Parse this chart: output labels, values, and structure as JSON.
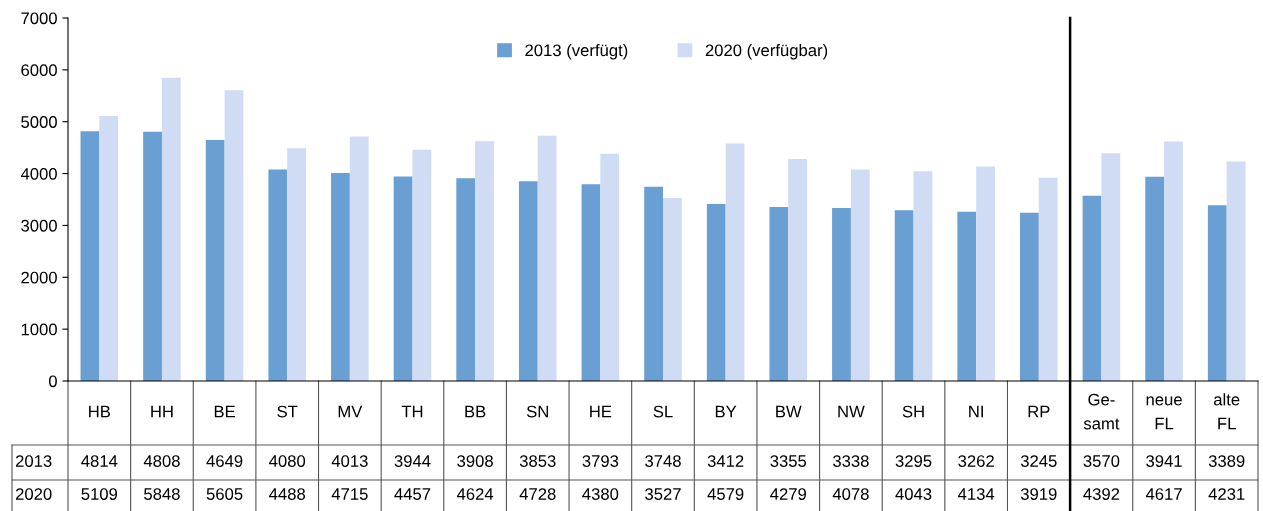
{
  "chart_data": {
    "type": "bar",
    "categories": [
      "HB",
      "HH",
      "BE",
      "ST",
      "MV",
      "TH",
      "BB",
      "SN",
      "HE",
      "SL",
      "BY",
      "BW",
      "NW",
      "SH",
      "NI",
      "RP",
      "Ge-\nsamt",
      "neue\nFL",
      "alte\nFL"
    ],
    "series": [
      {
        "name": "2013 (verfügt)",
        "color": "#6a9fd3",
        "values": [
          4814,
          4808,
          4649,
          4080,
          4013,
          3944,
          3908,
          3853,
          3793,
          3748,
          3412,
          3355,
          3338,
          3295,
          3262,
          3245,
          3570,
          3941,
          3389
        ]
      },
      {
        "name": "2020 (verfügbar)",
        "color": "#cfdcf4",
        "values": [
          5109,
          5848,
          5605,
          4488,
          4715,
          4457,
          4624,
          4728,
          4380,
          3527,
          4579,
          4279,
          4078,
          4043,
          4134,
          3919,
          4392,
          4617,
          4231
        ]
      }
    ],
    "ylim": [
      0,
      7000
    ],
    "yticks": [
      0,
      1000,
      2000,
      3000,
      4000,
      5000,
      6000,
      7000
    ],
    "grid": false,
    "legend": "top",
    "data_labels": true,
    "annotations": [
      "2013",
      "2020"
    ]
  }
}
